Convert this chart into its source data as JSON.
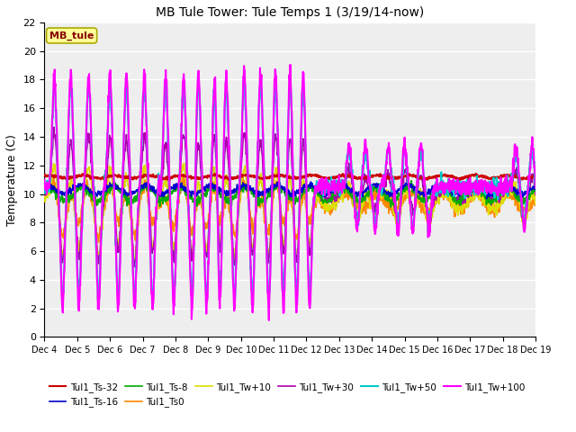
{
  "title": "MB Tule Tower: Tule Temps 1 (3/19/14-now)",
  "ylabel": "Temperature (C)",
  "ylim": [
    0,
    22
  ],
  "yticks": [
    0,
    2,
    4,
    6,
    8,
    10,
    12,
    14,
    16,
    18,
    20,
    22
  ],
  "xtick_labels": [
    "Dec 4",
    "Dec 5",
    "Dec 6",
    "Dec 7",
    "Dec 8",
    "Dec 9",
    "Dec 10",
    "Dec 11",
    "Dec 12",
    "Dec 13",
    "Dec 14",
    "Dec 15",
    "Dec 16",
    "Dec 17",
    "Dec 18",
    "Dec 19"
  ],
  "series": {
    "Tul1_Ts-32": {
      "color": "#cc0000",
      "lw": 1.5
    },
    "Tul1_Ts-16": {
      "color": "#0000cc",
      "lw": 1.2
    },
    "Tul1_Ts-8": {
      "color": "#00aa00",
      "lw": 1.2
    },
    "Tul1_Ts0": {
      "color": "#ff8800",
      "lw": 1.2
    },
    "Tul1_Tw+10": {
      "color": "#dddd00",
      "lw": 1.2
    },
    "Tul1_Tw+30": {
      "color": "#aa00aa",
      "lw": 1.2
    },
    "Tul1_Tw+50": {
      "color": "#00cccc",
      "lw": 1.5
    },
    "Tul1_Tw+100": {
      "color": "#ff00ff",
      "lw": 1.5
    }
  },
  "legend_box_color": "#ffff99",
  "legend_box_text": "MB_tule",
  "background_color": "#ffffff",
  "plot_bg_color": "#eeeeee",
  "grid_color": "#ffffff"
}
